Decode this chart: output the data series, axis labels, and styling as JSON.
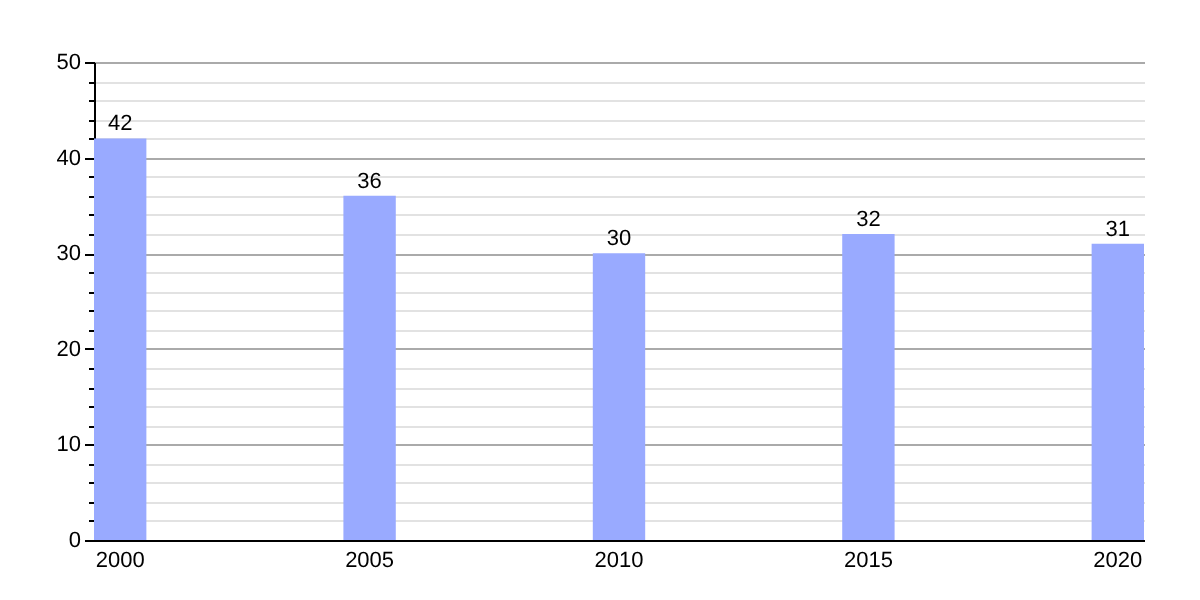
{
  "chart_data": {
    "type": "bar",
    "categories": [
      "2000",
      "2005",
      "2010",
      "2015",
      "2020"
    ],
    "series": [
      {
        "color": "#99aaff",
        "values": [
          42,
          36,
          30,
          32,
          31
        ]
      }
    ],
    "ylim": [
      0,
      50
    ],
    "yticks": [
      0,
      {
        "value": 2,
        "label": null
      },
      {
        "value": 4,
        "label": null
      },
      {
        "value": 6,
        "label": null
      },
      {
        "value": 8,
        "label": null
      },
      10,
      {
        "value": 12,
        "label": null
      },
      {
        "value": 14,
        "label": null
      },
      {
        "value": 16,
        "label": null
      },
      {
        "value": 18,
        "label": null
      },
      20,
      {
        "value": 22,
        "label": null
      },
      {
        "value": 24,
        "label": null
      },
      {
        "value": 26,
        "label": null
      },
      {
        "value": 28,
        "label": null
      },
      30,
      {
        "value": 32,
        "label": null
      },
      {
        "value": 34,
        "label": null
      },
      {
        "value": 36,
        "label": null
      },
      {
        "value": 38,
        "label": null
      },
      40,
      {
        "value": 42,
        "label": null
      },
      {
        "value": 44,
        "label": null
      },
      {
        "value": 46,
        "label": null
      },
      {
        "value": 48,
        "label": null
      },
      50
    ],
    "grid": true,
    "data_labels": true
  }
}
